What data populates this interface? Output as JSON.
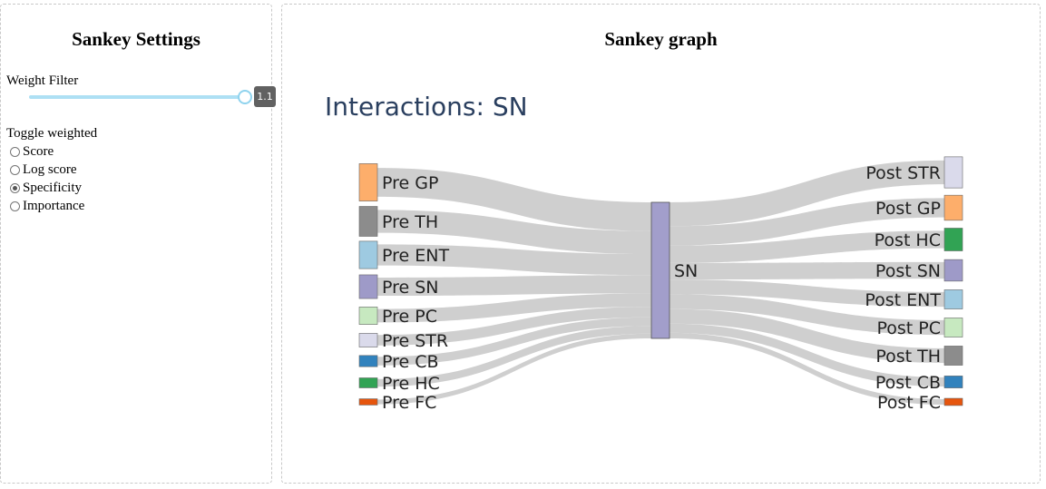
{
  "settings": {
    "title": "Sankey Settings",
    "weight_filter": {
      "label": "Weight Filter",
      "value": "1.1"
    },
    "toggle_label": "Toggle weighted",
    "options": [
      "Score",
      "Log score",
      "Specificity",
      "Importance"
    ],
    "selected": "Specificity"
  },
  "graph": {
    "panel_title": "Sankey graph",
    "plot_title": "Interactions: SN"
  },
  "colors": {
    "link": "#cccccc",
    "center": "#a29ecb",
    "GP": "#fdae6b",
    "TH": "#8c8c8c",
    "ENT": "#9ecae1",
    "SN": "#9e9ac8",
    "PC": "#c7e9c0",
    "STR": "#dadaeb",
    "CB": "#3182bd",
    "HC": "#31a354",
    "FC": "#e6550d"
  },
  "sankey": {
    "center": "SN",
    "left": [
      {
        "label": "Pre GP",
        "key": "GP",
        "value": 30
      },
      {
        "label": "Pre TH",
        "key": "TH",
        "value": 24
      },
      {
        "label": "Pre ENT",
        "key": "ENT",
        "value": 22
      },
      {
        "label": "Pre SN",
        "key": "SN",
        "value": 19
      },
      {
        "label": "Pre PC",
        "key": "PC",
        "value": 14
      },
      {
        "label": "Pre STR",
        "key": "STR",
        "value": 11
      },
      {
        "label": "Pre CB",
        "key": "CB",
        "value": 9
      },
      {
        "label": "Pre HC",
        "key": "HC",
        "value": 8
      },
      {
        "label": "Pre FC",
        "key": "FC",
        "value": 5
      }
    ],
    "right": [
      {
        "label": "Post STR",
        "key": "STR",
        "value": 26
      },
      {
        "label": "Post GP",
        "key": "GP",
        "value": 21
      },
      {
        "label": "Post HC",
        "key": "HC",
        "value": 19
      },
      {
        "label": "Post SN",
        "key": "SN",
        "value": 18
      },
      {
        "label": "Post ENT",
        "key": "ENT",
        "value": 16
      },
      {
        "label": "Post PC",
        "key": "PC",
        "value": 16
      },
      {
        "label": "Post TH",
        "key": "TH",
        "value": 16
      },
      {
        "label": "Post CB",
        "key": "CB",
        "value": 10
      },
      {
        "label": "Post FC",
        "key": "FC",
        "value": 6
      }
    ]
  }
}
